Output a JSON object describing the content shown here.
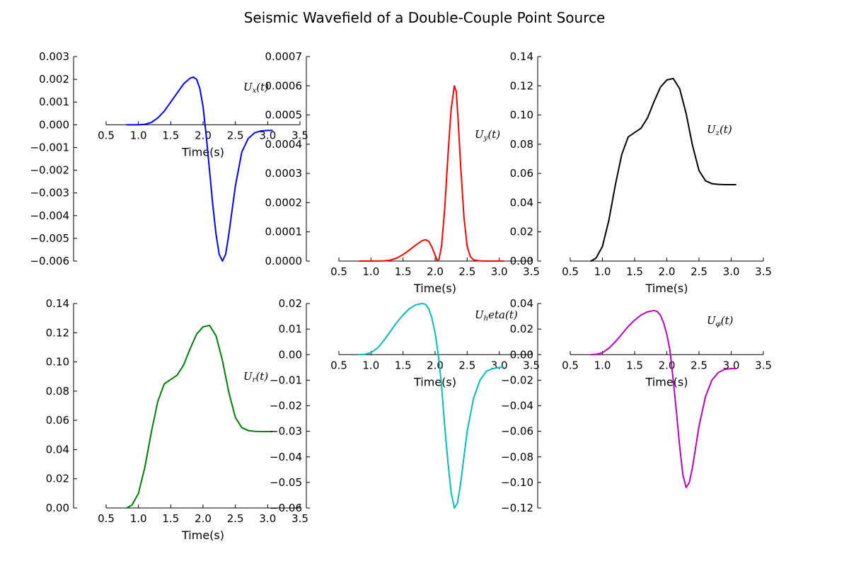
{
  "suptitle": "Seismic Wavefield of a Double-Couple Point Source",
  "chart_data": [
    {
      "type": "line",
      "id": "ux",
      "xlabel": "Time(s)",
      "legend": {
        "base": "U",
        "sub": "x",
        "tail": "(t)"
      },
      "color": "#0000ff",
      "xlim": [
        0.5,
        3.5
      ],
      "ylim": [
        -0.006,
        0.003
      ],
      "xticks": [
        "0.5",
        "1.0",
        "1.5",
        "2.0",
        "2.5",
        "3.0",
        "3.5"
      ],
      "xtick_values": [
        0.5,
        1.0,
        1.5,
        2.0,
        2.5,
        3.0,
        3.5
      ],
      "yticks": [
        "0.003",
        "0.002",
        "0.001",
        "0.000",
        "−0.001",
        "−0.002",
        "−0.003",
        "−0.004",
        "−0.005",
        "−0.006"
      ],
      "ytick_values": [
        0.003,
        0.002,
        0.001,
        0.0,
        -0.001,
        -0.002,
        -0.003,
        -0.004,
        -0.005,
        -0.006
      ],
      "x": [
        0.82,
        1.0,
        1.1,
        1.2,
        1.3,
        1.4,
        1.5,
        1.6,
        1.7,
        1.8,
        1.85,
        1.9,
        1.95,
        2.0,
        2.05,
        2.1,
        2.15,
        2.2,
        2.25,
        2.3,
        2.35,
        2.4,
        2.5,
        2.6,
        2.7,
        2.8,
        2.9,
        3.0,
        3.07
      ],
      "y": [
        0.0,
        0.0,
        2e-05,
        0.0001,
        0.0003,
        0.0006,
        0.001,
        0.0014,
        0.0018,
        0.00205,
        0.0021,
        0.002,
        0.0016,
        0.0008,
        -0.0005,
        -0.002,
        -0.0035,
        -0.0048,
        -0.0057,
        -0.006,
        -0.0057,
        -0.0048,
        -0.0027,
        -0.0012,
        -0.0006,
        -0.00035,
        -0.00027,
        -0.00025,
        -0.00025
      ]
    },
    {
      "type": "line",
      "id": "uy",
      "xlabel": "Time(s)",
      "legend": {
        "base": "U",
        "sub": "y",
        "tail": "(t)"
      },
      "color": "#ff0000",
      "xlim": [
        0.5,
        3.5
      ],
      "ylim": [
        0.0,
        0.0007
      ],
      "xticks": [
        "0.5",
        "1.0",
        "1.5",
        "2.0",
        "2.5",
        "3.0",
        "3.5"
      ],
      "xtick_values": [
        0.5,
        1.0,
        1.5,
        2.0,
        2.5,
        3.0,
        3.5
      ],
      "yticks": [
        "0.0007",
        "0.0006",
        "0.0005",
        "0.0004",
        "0.0003",
        "0.0002",
        "0.0001",
        "0.0000"
      ],
      "ytick_values": [
        0.0007,
        0.0006,
        0.0005,
        0.0004,
        0.0003,
        0.0002,
        0.0001,
        0.0
      ],
      "x": [
        0.82,
        1.0,
        1.2,
        1.3,
        1.4,
        1.5,
        1.6,
        1.7,
        1.8,
        1.85,
        1.9,
        1.95,
        2.0,
        2.03,
        2.06,
        2.1,
        2.15,
        2.2,
        2.25,
        2.3,
        2.33,
        2.36,
        2.4,
        2.45,
        2.5,
        2.55,
        2.6,
        2.7,
        2.8,
        3.07
      ],
      "y": [
        0.0,
        0.0,
        5e-07,
        3e-06,
        1e-05,
        2.2e-05,
        3.8e-05,
        5.5e-05,
        7e-05,
        7.3e-05,
        6.8e-05,
        4.8e-05,
        2e-05,
        3e-06,
        5e-06,
        5e-05,
        0.00018,
        0.00036,
        0.00052,
        0.0006,
        0.00058,
        0.00048,
        0.00032,
        0.00015,
        5e-05,
        1.5e-05,
        4e-06,
        5e-07,
        0.0,
        0.0
      ]
    },
    {
      "type": "line",
      "id": "uz",
      "xlabel": "Time(s)",
      "legend": {
        "base": "U",
        "sub": "z",
        "tail": "(t)"
      },
      "color": "#000000",
      "xlim": [
        0.5,
        3.5
      ],
      "ylim": [
        0.0,
        0.14
      ],
      "xticks": [
        "0.5",
        "1.0",
        "1.5",
        "2.0",
        "2.5",
        "3.0",
        "3.5"
      ],
      "xtick_values": [
        0.5,
        1.0,
        1.5,
        2.0,
        2.5,
        3.0,
        3.5
      ],
      "yticks": [
        "0.14",
        "0.12",
        "0.10",
        "0.08",
        "0.06",
        "0.04",
        "0.02",
        "0.00"
      ],
      "ytick_values": [
        0.14,
        0.12,
        0.1,
        0.08,
        0.06,
        0.04,
        0.02,
        0.0
      ],
      "x": [
        0.82,
        0.9,
        1.0,
        1.1,
        1.2,
        1.3,
        1.4,
        1.5,
        1.6,
        1.7,
        1.8,
        1.9,
        2.0,
        2.1,
        2.2,
        2.3,
        2.4,
        2.5,
        2.6,
        2.7,
        2.8,
        2.9,
        3.07
      ],
      "y": [
        0.0,
        0.002,
        0.01,
        0.028,
        0.052,
        0.073,
        0.085,
        0.088,
        0.091,
        0.098,
        0.109,
        0.119,
        0.124,
        0.125,
        0.118,
        0.101,
        0.079,
        0.062,
        0.055,
        0.053,
        0.0525,
        0.0523,
        0.0523
      ]
    },
    {
      "type": "line",
      "id": "ur",
      "xlabel": "Time(s)",
      "legend": {
        "base": "U",
        "sub": "r",
        "tail": "(t)"
      },
      "color": "#008000",
      "xlim": [
        0.5,
        3.5
      ],
      "ylim": [
        0.0,
        0.14
      ],
      "xticks": [
        "0.5",
        "1.0",
        "1.5",
        "2.0",
        "2.5",
        "3.0",
        "3.5"
      ],
      "xtick_values": [
        0.5,
        1.0,
        1.5,
        2.0,
        2.5,
        3.0,
        3.5
      ],
      "yticks": [
        "0.14",
        "0.12",
        "0.10",
        "0.08",
        "0.06",
        "0.04",
        "0.02",
        "0.00"
      ],
      "ytick_values": [
        0.14,
        0.12,
        0.1,
        0.08,
        0.06,
        0.04,
        0.02,
        0.0
      ],
      "x": [
        0.82,
        0.9,
        1.0,
        1.1,
        1.2,
        1.3,
        1.4,
        1.5,
        1.6,
        1.7,
        1.8,
        1.9,
        2.0,
        2.1,
        2.2,
        2.3,
        2.4,
        2.5,
        2.6,
        2.7,
        2.8,
        2.9,
        3.07
      ],
      "y": [
        0.0,
        0.002,
        0.01,
        0.028,
        0.052,
        0.073,
        0.085,
        0.088,
        0.091,
        0.098,
        0.109,
        0.119,
        0.124,
        0.125,
        0.118,
        0.101,
        0.079,
        0.062,
        0.055,
        0.053,
        0.0525,
        0.0523,
        0.0523
      ]
    },
    {
      "type": "line",
      "id": "utheta",
      "xlabel": "Time(s)",
      "legend": {
        "base": "U",
        "sub": "h",
        "tail": "eta(t)"
      },
      "color": "#00bfbf",
      "xlim": [
        0.5,
        3.5
      ],
      "ylim": [
        -0.06,
        0.02
      ],
      "xticks": [
        "0.5",
        "1.0",
        "1.5",
        "2.0",
        "2.5",
        "3.0",
        "3.5"
      ],
      "xtick_values": [
        0.5,
        1.0,
        1.5,
        2.0,
        2.5,
        3.0,
        3.5
      ],
      "yticks": [
        "0.02",
        "0.01",
        "0.00",
        "−0.01",
        "−0.02",
        "−0.03",
        "−0.04",
        "−0.05",
        "−0.06"
      ],
      "ytick_values": [
        0.02,
        0.01,
        0.0,
        -0.01,
        -0.02,
        -0.03,
        -0.04,
        -0.05,
        -0.06
      ],
      "x": [
        0.82,
        0.9,
        1.0,
        1.1,
        1.2,
        1.3,
        1.4,
        1.5,
        1.6,
        1.7,
        1.8,
        1.85,
        1.9,
        1.95,
        2.0,
        2.05,
        2.1,
        2.15,
        2.2,
        2.25,
        2.3,
        2.35,
        2.4,
        2.45,
        2.5,
        2.6,
        2.7,
        2.8,
        2.9,
        3.0,
        3.07
      ],
      "y": [
        0.0,
        0.0001,
        0.0008,
        0.0025,
        0.0055,
        0.009,
        0.0125,
        0.0155,
        0.018,
        0.0195,
        0.02,
        0.0197,
        0.018,
        0.0143,
        0.0085,
        0.0,
        -0.012,
        -0.028,
        -0.042,
        -0.054,
        -0.06,
        -0.058,
        -0.05,
        -0.04,
        -0.03,
        -0.017,
        -0.01,
        -0.0065,
        -0.0055,
        -0.005,
        -0.005
      ]
    },
    {
      "type": "line",
      "id": "uphi",
      "xlabel": "Time(s)",
      "legend": {
        "base": "U",
        "sub": "φ",
        "tail": "(t)"
      },
      "color": "#bf00bf",
      "xlim": [
        0.5,
        3.5
      ],
      "ylim": [
        -0.12,
        0.04
      ],
      "xticks": [
        "0.5",
        "1.0",
        "1.5",
        "2.0",
        "2.5",
        "3.0",
        "3.5"
      ],
      "xtick_values": [
        0.5,
        1.0,
        1.5,
        2.0,
        2.5,
        3.0,
        3.5
      ],
      "yticks": [
        "0.04",
        "0.02",
        "0.00",
        "−0.02",
        "−0.04",
        "−0.06",
        "−0.08",
        "−0.10",
        "−0.12"
      ],
      "ytick_values": [
        0.04,
        0.02,
        0.0,
        -0.02,
        -0.04,
        -0.06,
        -0.08,
        -0.1,
        -0.12
      ],
      "x": [
        0.82,
        0.9,
        1.0,
        1.1,
        1.2,
        1.3,
        1.4,
        1.5,
        1.6,
        1.7,
        1.8,
        1.85,
        1.9,
        1.95,
        2.0,
        2.05,
        2.1,
        2.15,
        2.2,
        2.25,
        2.3,
        2.35,
        2.4,
        2.45,
        2.5,
        2.6,
        2.7,
        2.8,
        2.9,
        3.0,
        3.07
      ],
      "y": [
        0.0,
        0.0002,
        0.0015,
        0.005,
        0.01,
        0.016,
        0.022,
        0.027,
        0.031,
        0.0335,
        0.0345,
        0.0338,
        0.031,
        0.025,
        0.016,
        0.003,
        -0.02,
        -0.045,
        -0.072,
        -0.094,
        -0.104,
        -0.1,
        -0.088,
        -0.072,
        -0.056,
        -0.033,
        -0.02,
        -0.014,
        -0.0115,
        -0.011,
        -0.011
      ]
    }
  ]
}
